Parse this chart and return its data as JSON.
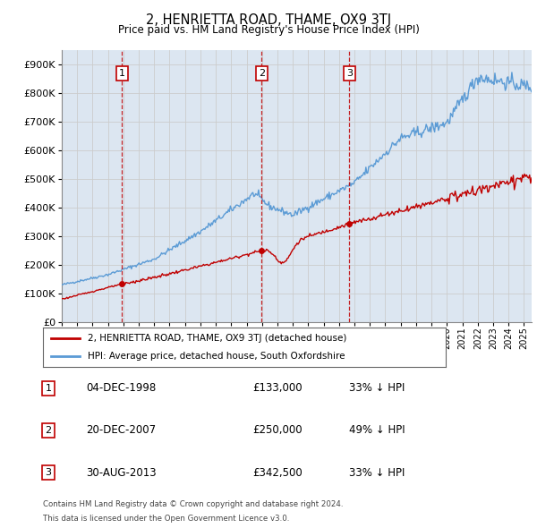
{
  "title": "2, HENRIETTA ROAD, THAME, OX9 3TJ",
  "subtitle": "Price paid vs. HM Land Registry's House Price Index (HPI)",
  "ytick_values": [
    0,
    100000,
    200000,
    300000,
    400000,
    500000,
    600000,
    700000,
    800000,
    900000
  ],
  "ylim": [
    0,
    950000
  ],
  "xlim_start": 1995.0,
  "xlim_end": 2025.5,
  "hpi_color": "#5b9bd5",
  "price_color": "#c00000",
  "grid_color": "#cccccc",
  "background_color": "#dce6f1",
  "transactions": [
    {
      "num": 1,
      "date_x": 1998.92,
      "price": 133000,
      "label": "04-DEC-1998",
      "price_label": "£133,000",
      "pct_label": "33% ↓ HPI"
    },
    {
      "num": 2,
      "date_x": 2007.97,
      "price": 250000,
      "label": "20-DEC-2007",
      "price_label": "£250,000",
      "pct_label": "49% ↓ HPI"
    },
    {
      "num": 3,
      "date_x": 2013.66,
      "price": 342500,
      "label": "30-AUG-2013",
      "price_label": "£342,500",
      "pct_label": "33% ↓ HPI"
    }
  ],
  "legend_line1": "2, HENRIETTA ROAD, THAME, OX9 3TJ (detached house)",
  "legend_line2": "HPI: Average price, detached house, South Oxfordshire",
  "footer1": "Contains HM Land Registry data © Crown copyright and database right 2024.",
  "footer2": "This data is licensed under the Open Government Licence v3.0.",
  "xtick_years": [
    1995,
    1996,
    1997,
    1998,
    1999,
    2000,
    2001,
    2002,
    2003,
    2004,
    2005,
    2006,
    2007,
    2008,
    2009,
    2010,
    2011,
    2012,
    2013,
    2014,
    2015,
    2016,
    2017,
    2018,
    2019,
    2020,
    2021,
    2022,
    2023,
    2024,
    2025
  ]
}
